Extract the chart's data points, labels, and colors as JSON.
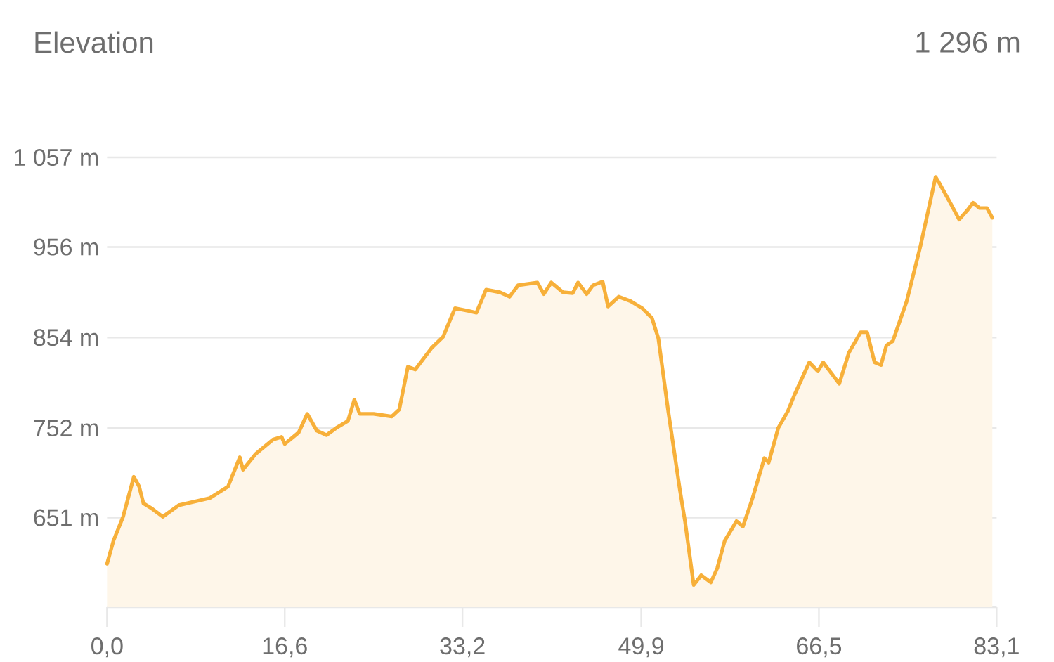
{
  "chart_data": {
    "type": "area",
    "title": "Elevation",
    "annotations": [
      "1 296 m"
    ],
    "x": [
      0,
      0.6,
      1.5,
      2.5,
      3.0,
      3.4,
      4.1,
      5.2,
      6.7,
      9.6,
      11.3,
      12.4,
      12.7,
      13.9,
      15.5,
      16.3,
      16.6,
      17.9,
      18.7,
      19.6,
      20.5,
      21.4,
      22.5,
      23.1,
      23.6,
      24.9,
      26.6,
      27.3,
      28.1,
      28.8,
      30.3,
      31.4,
      32.5,
      33.8,
      34.5,
      35.4,
      36.7,
      37.6,
      38.4,
      40.2,
      40.8,
      41.5,
      42.6,
      43.5,
      44.0,
      44.8,
      45.4,
      46.3,
      46.8,
      47.8,
      48.9,
      50.0,
      50.9,
      51.5,
      52.4,
      53.5,
      54.0,
      54.8,
      55.5,
      56.4,
      57.0,
      57.7,
      58.8,
      59.4,
      60.3,
      61.4,
      61.8,
      62.7,
      63.6,
      64.2,
      65.6,
      66.4,
      66.9,
      68.4,
      69.3,
      70.4,
      71.0,
      71.7,
      72.3,
      72.8,
      73.4,
      74.7,
      76.0,
      77.4,
      77.8,
      78.9,
      79.6,
      80.4,
      80.9,
      81.5,
      82.2,
      82.7
    ],
    "series": [
      {
        "color": "#f7b03a",
        "values": [
          599,
          625,
          652,
          697,
          686,
          667,
          662,
          652,
          665,
          673,
          686,
          719,
          705,
          723,
          739,
          742,
          734,
          747,
          768,
          749,
          744,
          752,
          760,
          784,
          768,
          768,
          765,
          773,
          821,
          818,
          842,
          855,
          887,
          884,
          882,
          908,
          905,
          900,
          913,
          916,
          903,
          916,
          905,
          904,
          916,
          903,
          913,
          917,
          889,
          900,
          895,
          887,
          876,
          853,
          773,
          683,
          646,
          575,
          586,
          578,
          594,
          625,
          647,
          641,
          673,
          718,
          713,
          752,
          771,
          789,
          826,
          816,
          826,
          802,
          837,
          860,
          860,
          826,
          823,
          845,
          850,
          895,
          958,
          1035,
          1027,
          1003,
          987,
          998,
          1006,
          1000,
          1000,
          989
        ]
      }
    ],
    "xlim": [
      0,
      83.1
    ],
    "ylim": [
      550,
      1057
    ],
    "xticks": [
      {
        "value": 0,
        "label": "0,0"
      },
      {
        "value": 16.6,
        "label": "16,6"
      },
      {
        "value": 33.2,
        "label": "33,2"
      },
      {
        "value": 49.9,
        "label": "49,9"
      },
      {
        "value": 66.5,
        "label": "66,5"
      },
      {
        "value": 83.1,
        "label": "83,1"
      }
    ],
    "yticks": [
      {
        "value": 651,
        "label": "651 m"
      },
      {
        "value": 752,
        "label": "752 m"
      },
      {
        "value": 854,
        "label": "854 m"
      },
      {
        "value": 956,
        "label": "956 m"
      },
      {
        "value": 1057,
        "label": "1 057 m"
      }
    ],
    "grid": "y"
  }
}
